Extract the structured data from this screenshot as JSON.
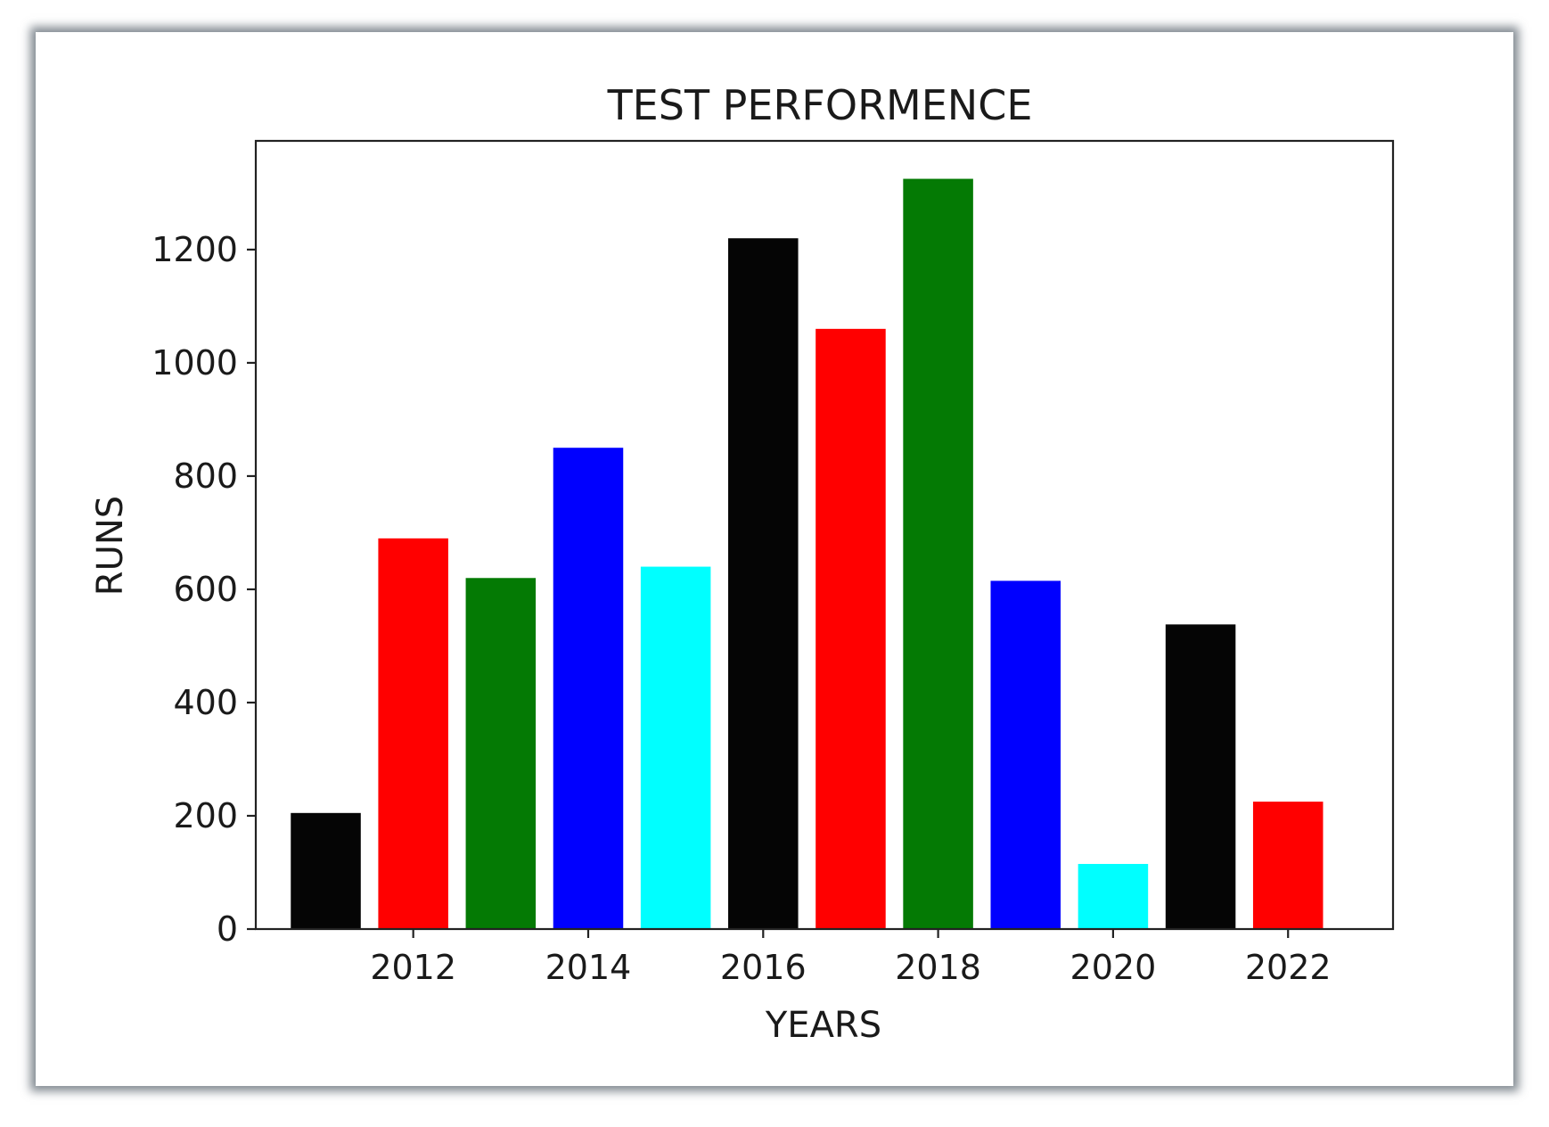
{
  "chart_data": {
    "type": "bar",
    "title": "TEST PERFORMENCE",
    "xlabel": "YEARS",
    "ylabel": "RUNS",
    "x": [
      2011,
      2012,
      2013,
      2014,
      2015,
      2016,
      2017,
      2018,
      2019,
      2020,
      2021,
      2022
    ],
    "values": [
      205,
      690,
      620,
      850,
      640,
      1220,
      1060,
      1325,
      615,
      115,
      538,
      225
    ],
    "colors": [
      "#050505",
      "#ff0000",
      "#047a04",
      "#0000ff",
      "#00ffff",
      "#050505",
      "#ff0000",
      "#047a04",
      "#0000ff",
      "#00ffff",
      "#050505",
      "#ff0000"
    ],
    "xticks": [
      2012,
      2014,
      2016,
      2018,
      2020,
      2022
    ],
    "xtick_labels": [
      "2012",
      "2014",
      "2016",
      "2018",
      "2020",
      "2022"
    ],
    "yticks": [
      0,
      200,
      400,
      600,
      800,
      1000,
      1200
    ],
    "ytick_labels": [
      "0",
      "200",
      "400",
      "600",
      "800",
      "1000",
      "1200"
    ],
    "xlim": [
      2010.2,
      2023.2
    ],
    "ylim": [
      0,
      1392
    ],
    "grid": false,
    "legend": "none"
  }
}
